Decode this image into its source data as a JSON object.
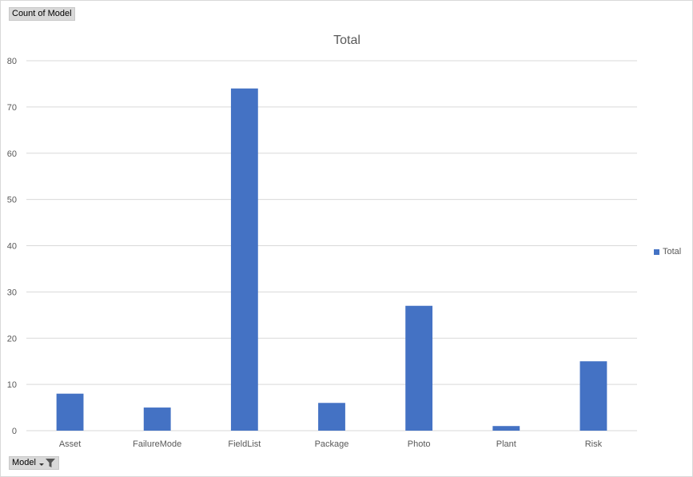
{
  "field_buttons": {
    "values_label": "Count of Model",
    "axis_label": "Model"
  },
  "colors": {
    "bar": "#4472c4",
    "grid": "#d9d9d9",
    "axis_text": "#595959",
    "title_text": "#595959"
  },
  "icons": {
    "filter": "dropdown-filter-icon"
  },
  "chart_data": {
    "type": "bar",
    "title": "Total",
    "categories": [
      "Asset",
      "FailureMode",
      "FieldList",
      "Package",
      "Photo",
      "Plant",
      "Risk"
    ],
    "series": [
      {
        "name": "Total",
        "values": [
          8,
          5,
          74,
          6,
          27,
          1,
          15
        ]
      }
    ],
    "ylim": [
      0,
      80
    ],
    "yticks": [
      0,
      10,
      20,
      30,
      40,
      50,
      60,
      70,
      80
    ],
    "grid": true,
    "legend": "right"
  }
}
